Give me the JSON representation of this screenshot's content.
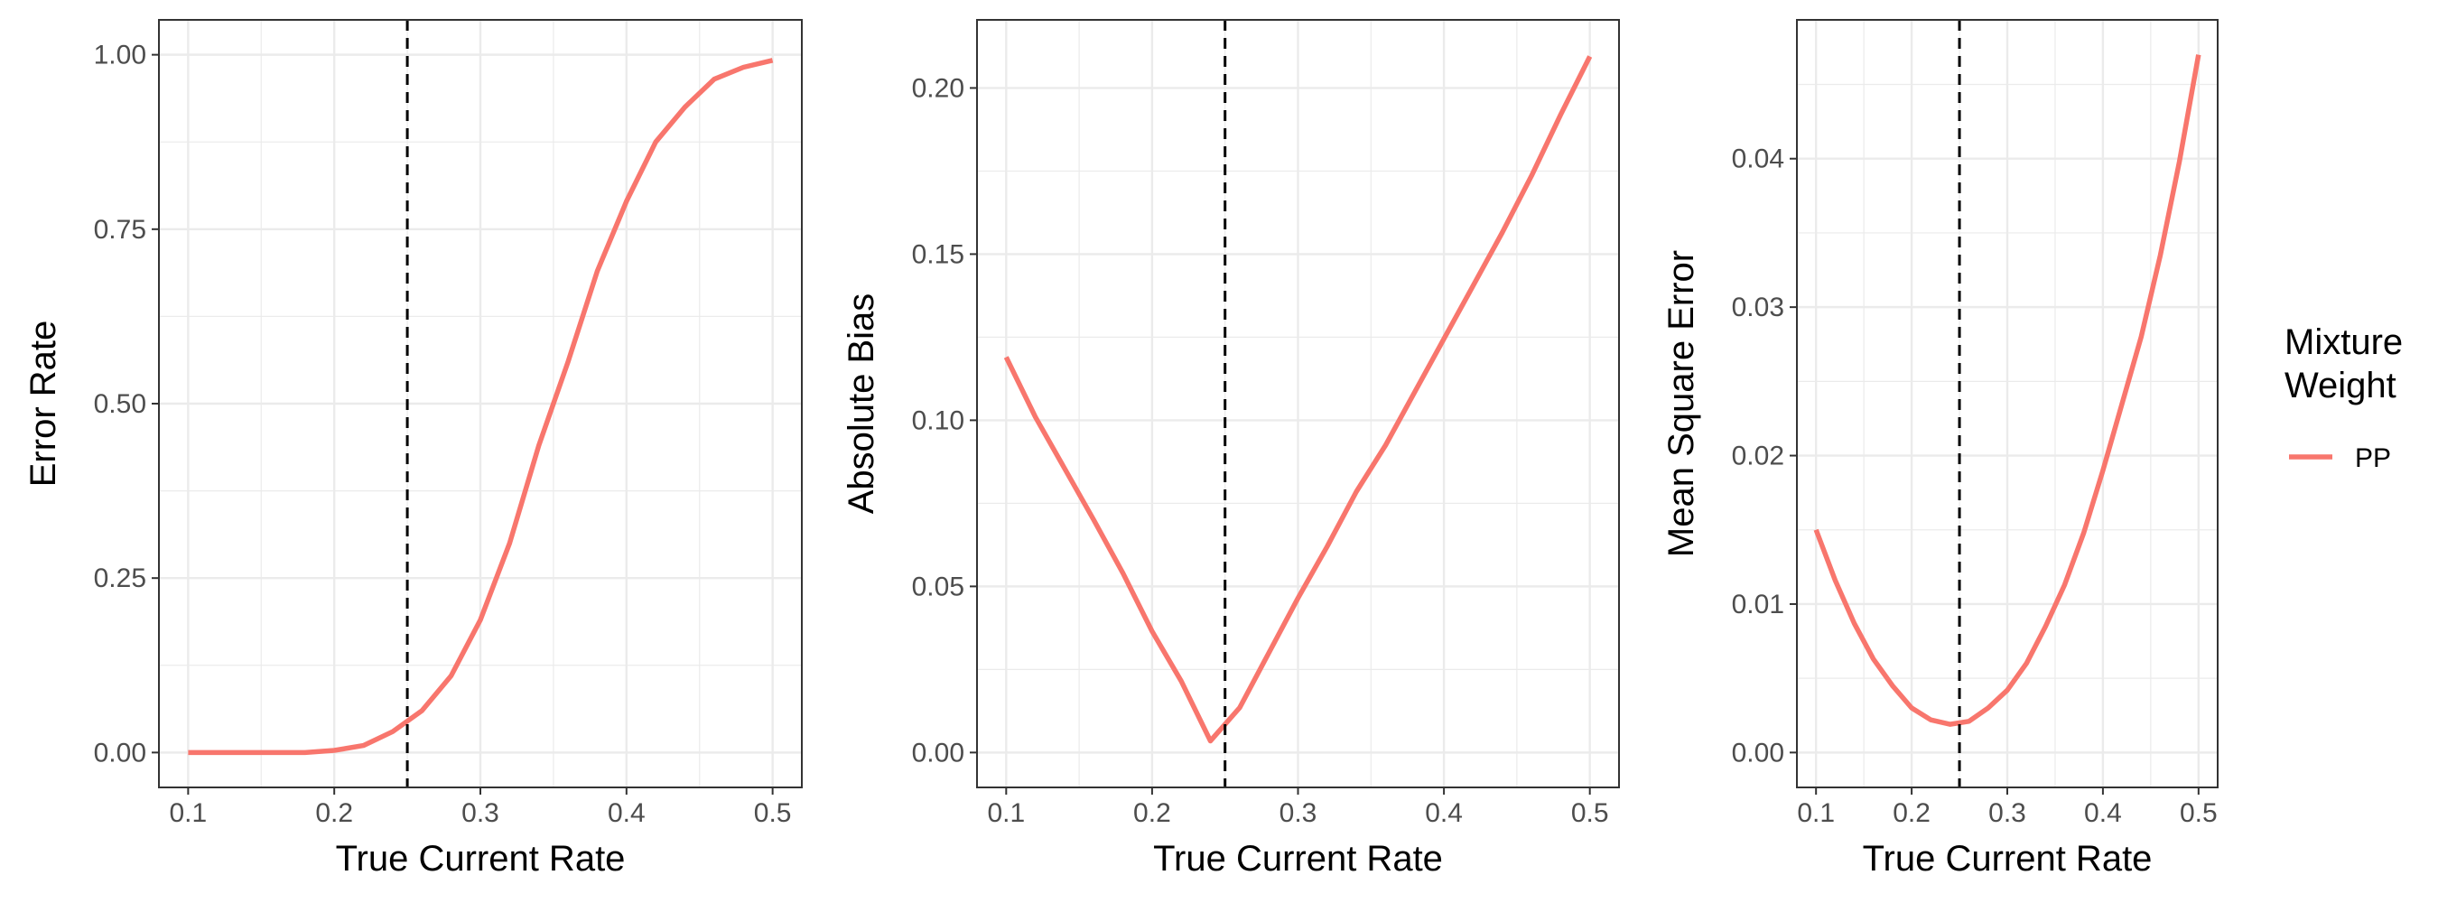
{
  "chart_data": [
    {
      "type": "line",
      "xlabel": "True Current Rate",
      "ylabel": "Error Rate",
      "xlim": [
        0.1,
        0.5
      ],
      "ylim": [
        0,
        1
      ],
      "xticks": [
        "0.1",
        "0.2",
        "0.3",
        "0.4",
        "0.5"
      ],
      "yticks": [
        "0.00",
        "0.25",
        "0.50",
        "0.75",
        "1.00"
      ],
      "vline": 0.25,
      "grid": true,
      "series": [
        {
          "name": "PP",
          "x": [
            0.1,
            0.12,
            0.14,
            0.16,
            0.18,
            0.2,
            0.22,
            0.24,
            0.26,
            0.28,
            0.3,
            0.32,
            0.34,
            0.36,
            0.38,
            0.4,
            0.42,
            0.44,
            0.46,
            0.48,
            0.5
          ],
          "y": [
            0.0,
            0.0,
            0.0,
            0.0,
            0.0,
            0.003,
            0.01,
            0.03,
            0.06,
            0.11,
            0.19,
            0.3,
            0.44,
            0.56,
            0.69,
            0.79,
            0.875,
            0.925,
            0.965,
            0.982,
            0.992
          ]
        }
      ]
    },
    {
      "type": "line",
      "xlabel": "True Current Rate",
      "ylabel": "Absolute Bias",
      "xlim": [
        0.1,
        0.5
      ],
      "ylim": [
        0,
        0.21
      ],
      "xticks": [
        "0.1",
        "0.2",
        "0.3",
        "0.4",
        "0.5"
      ],
      "yticks": [
        "0.00",
        "0.05",
        "0.10",
        "0.15",
        "0.20"
      ],
      "vline": 0.25,
      "grid": true,
      "series": [
        {
          "name": "PP",
          "x": [
            0.1,
            0.12,
            0.14,
            0.16,
            0.18,
            0.2,
            0.22,
            0.24,
            0.26,
            0.28,
            0.3,
            0.32,
            0.34,
            0.36,
            0.38,
            0.4,
            0.42,
            0.44,
            0.46,
            0.48,
            0.5
          ],
          "y": [
            0.119,
            0.101,
            0.0855,
            0.07,
            0.054,
            0.0365,
            0.0215,
            0.0035,
            0.0135,
            0.03,
            0.0465,
            0.062,
            0.0785,
            0.0925,
            0.1085,
            0.1245,
            0.1405,
            0.1565,
            0.1735,
            0.192,
            0.2095
          ]
        }
      ]
    },
    {
      "type": "line",
      "xlabel": "True Current Rate",
      "ylabel": "Mean Square Error",
      "xlim": [
        0.1,
        0.5
      ],
      "ylim": [
        0,
        0.047
      ],
      "xticks": [
        "0.1",
        "0.2",
        "0.3",
        "0.4",
        "0.5"
      ],
      "yticks": [
        "0.00",
        "0.01",
        "0.02",
        "0.03",
        "0.04"
      ],
      "vline": 0.25,
      "grid": true,
      "series": [
        {
          "name": "PP",
          "x": [
            0.1,
            0.12,
            0.14,
            0.16,
            0.18,
            0.2,
            0.22,
            0.24,
            0.26,
            0.28,
            0.3,
            0.32,
            0.34,
            0.36,
            0.38,
            0.4,
            0.42,
            0.44,
            0.46,
            0.48,
            0.5
          ],
          "y": [
            0.015,
            0.0116,
            0.0087,
            0.0063,
            0.0045,
            0.003,
            0.0022,
            0.0019,
            0.0021,
            0.003,
            0.0042,
            0.006,
            0.0085,
            0.0113,
            0.0148,
            0.019,
            0.0235,
            0.028,
            0.0335,
            0.0398,
            0.047
          ]
        }
      ]
    }
  ],
  "legend": {
    "title_line1": "Mixture",
    "title_line2": "Weight",
    "items": [
      {
        "label": "PP",
        "color": "#f8766d"
      }
    ]
  },
  "colors": {
    "series": "#f8766d",
    "gridline": "#ebebeb",
    "panel_border": "#333333",
    "vline": "#000000"
  }
}
